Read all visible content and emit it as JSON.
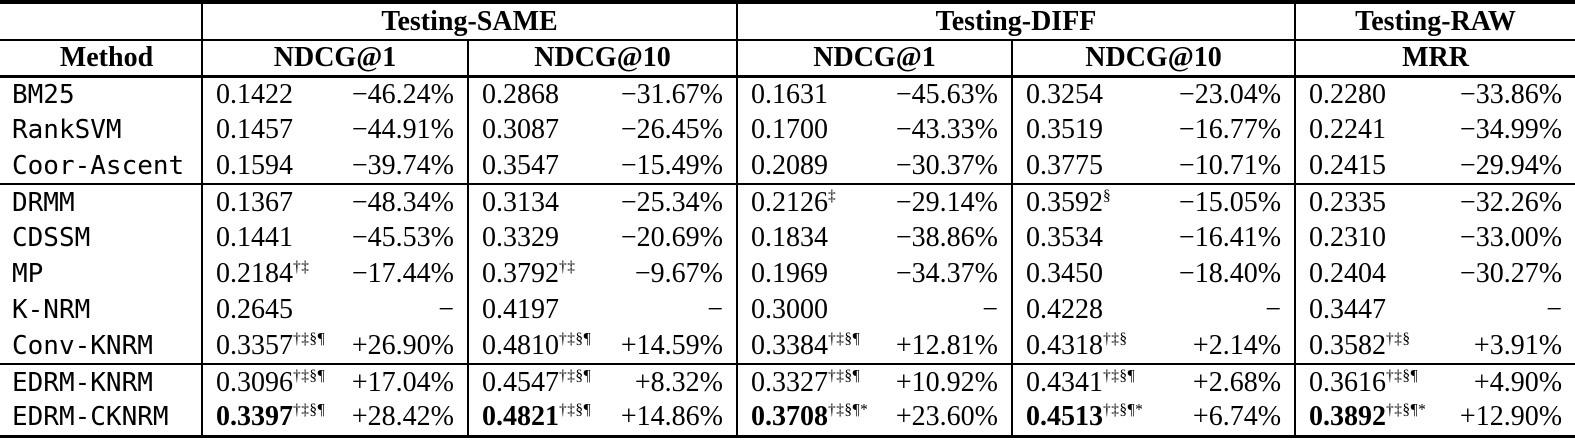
{
  "table": {
    "corner": "",
    "method_header": "Method",
    "groups": [
      {
        "label": "Testing-SAME",
        "metrics": [
          "NDCG@1",
          "NDCG@10"
        ]
      },
      {
        "label": "Testing-DIFF",
        "metrics": [
          "NDCG@1",
          "NDCG@10"
        ]
      },
      {
        "label": "Testing-RAW",
        "metrics": [
          "MRR"
        ]
      }
    ],
    "rows": [
      {
        "method": "BM25",
        "group_end": false,
        "cells": [
          {
            "v": "0.1422",
            "sup": "",
            "p": "−46.24%",
            "bold": false
          },
          {
            "v": "0.2868",
            "sup": "",
            "p": "−31.67%",
            "bold": false
          },
          {
            "v": "0.1631",
            "sup": "",
            "p": "−45.63%",
            "bold": false
          },
          {
            "v": "0.3254",
            "sup": "",
            "p": "−23.04%",
            "bold": false
          },
          {
            "v": "0.2280",
            "sup": "",
            "p": "−33.86%",
            "bold": false
          }
        ]
      },
      {
        "method": "RankSVM",
        "group_end": false,
        "cells": [
          {
            "v": "0.1457",
            "sup": "",
            "p": "−44.91%",
            "bold": false
          },
          {
            "v": "0.3087",
            "sup": "",
            "p": "−26.45%",
            "bold": false
          },
          {
            "v": "0.1700",
            "sup": "",
            "p": "−43.33%",
            "bold": false
          },
          {
            "v": "0.3519",
            "sup": "",
            "p": "−16.77%",
            "bold": false
          },
          {
            "v": "0.2241",
            "sup": "",
            "p": "−34.99%",
            "bold": false
          }
        ]
      },
      {
        "method": "Coor-Ascent",
        "group_end": true,
        "cells": [
          {
            "v": "0.1594",
            "sup": "",
            "p": "−39.74%",
            "bold": false
          },
          {
            "v": "0.3547",
            "sup": "",
            "p": "−15.49%",
            "bold": false
          },
          {
            "v": "0.2089",
            "sup": "",
            "p": "−30.37%",
            "bold": false
          },
          {
            "v": "0.3775",
            "sup": "",
            "p": "−10.71%",
            "bold": false
          },
          {
            "v": "0.2415",
            "sup": "",
            "p": "−29.94%",
            "bold": false
          }
        ]
      },
      {
        "method": "DRMM",
        "group_end": false,
        "cells": [
          {
            "v": "0.1367",
            "sup": "",
            "p": "−48.34%",
            "bold": false
          },
          {
            "v": "0.3134",
            "sup": "",
            "p": "−25.34%",
            "bold": false
          },
          {
            "v": "0.2126",
            "sup": "‡",
            "p": "−29.14%",
            "bold": false
          },
          {
            "v": "0.3592",
            "sup": "§",
            "p": "−15.05%",
            "bold": false
          },
          {
            "v": "0.2335",
            "sup": "",
            "p": "−32.26%",
            "bold": false
          }
        ]
      },
      {
        "method": "CDSSM",
        "group_end": false,
        "cells": [
          {
            "v": "0.1441",
            "sup": "",
            "p": "−45.53%",
            "bold": false
          },
          {
            "v": "0.3329",
            "sup": "",
            "p": "−20.69%",
            "bold": false
          },
          {
            "v": "0.1834",
            "sup": "",
            "p": "−38.86%",
            "bold": false
          },
          {
            "v": "0.3534",
            "sup": "",
            "p": "−16.41%",
            "bold": false
          },
          {
            "v": "0.2310",
            "sup": "",
            "p": "−33.00%",
            "bold": false
          }
        ]
      },
      {
        "method": "MP",
        "group_end": false,
        "cells": [
          {
            "v": "0.2184",
            "sup": "†‡",
            "p": "−17.44%",
            "bold": false
          },
          {
            "v": "0.3792",
            "sup": "†‡",
            "p": "−9.67%",
            "bold": false
          },
          {
            "v": "0.1969",
            "sup": "",
            "p": "−34.37%",
            "bold": false
          },
          {
            "v": "0.3450",
            "sup": "",
            "p": "−18.40%",
            "bold": false
          },
          {
            "v": "0.2404",
            "sup": "",
            "p": "−30.27%",
            "bold": false
          }
        ]
      },
      {
        "method": "K-NRM",
        "group_end": false,
        "cells": [
          {
            "v": "0.2645",
            "sup": "",
            "p": "−",
            "bold": false
          },
          {
            "v": "0.4197",
            "sup": "",
            "p": "−",
            "bold": false
          },
          {
            "v": "0.3000",
            "sup": "",
            "p": "−",
            "bold": false
          },
          {
            "v": "0.4228",
            "sup": "",
            "p": "−",
            "bold": false
          },
          {
            "v": "0.3447",
            "sup": "",
            "p": "−",
            "bold": false
          }
        ]
      },
      {
        "method": "Conv-KNRM",
        "group_end": true,
        "cells": [
          {
            "v": "0.3357",
            "sup": "†‡§¶",
            "p": "+26.90%",
            "bold": false
          },
          {
            "v": "0.4810",
            "sup": "†‡§¶",
            "p": "+14.59%",
            "bold": false
          },
          {
            "v": "0.3384",
            "sup": "†‡§¶",
            "p": "+12.81%",
            "bold": false
          },
          {
            "v": "0.4318",
            "sup": "†‡§",
            "p": "+2.14%",
            "bold": false
          },
          {
            "v": "0.3582",
            "sup": "†‡§",
            "p": "+3.91%",
            "bold": false
          }
        ]
      },
      {
        "method": "EDRM-KNRM",
        "group_end": false,
        "cells": [
          {
            "v": "0.3096",
            "sup": "†‡§¶",
            "p": "+17.04%",
            "bold": false
          },
          {
            "v": "0.4547",
            "sup": "†‡§¶",
            "p": "+8.32%",
            "bold": false
          },
          {
            "v": "0.3327",
            "sup": "†‡§¶",
            "p": "+10.92%",
            "bold": false
          },
          {
            "v": "0.4341",
            "sup": "†‡§¶",
            "p": "+2.68%",
            "bold": false
          },
          {
            "v": "0.3616",
            "sup": "†‡§¶",
            "p": "+4.90%",
            "bold": false
          }
        ]
      },
      {
        "method": "EDRM-CKNRM",
        "group_end": false,
        "cells": [
          {
            "v": "0.3397",
            "sup": "†‡§¶",
            "p": "+28.42%",
            "bold": true
          },
          {
            "v": "0.4821",
            "sup": "†‡§¶",
            "p": "+14.86%",
            "bold": true
          },
          {
            "v": "0.3708",
            "sup": "†‡§¶*",
            "p": "+23.60%",
            "bold": true
          },
          {
            "v": "0.4513",
            "sup": "†‡§¶*",
            "p": "+6.74%",
            "bold": true
          },
          {
            "v": "0.3892",
            "sup": "†‡§¶*",
            "p": "+12.90%",
            "bold": true
          }
        ]
      }
    ]
  }
}
